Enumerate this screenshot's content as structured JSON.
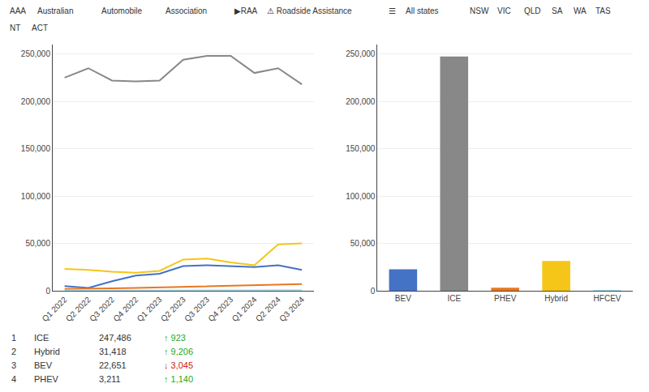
{
  "chart_data": [
    {
      "type": "line",
      "categories": [
        "Q1 2022",
        "Q2 2022",
        "Q3 2022",
        "Q4 2022",
        "Q1 2023",
        "Q2 2023",
        "Q3 2023",
        "Q4 2023",
        "Q1 2024",
        "Q2 2024",
        "Q3 2024"
      ],
      "series": [
        {
          "name": "ICE",
          "color": "#888888",
          "values": [
            225000,
            235000,
            222000,
            221000,
            222000,
            244000,
            248000,
            248000,
            230000,
            235000,
            218000
          ]
        },
        {
          "name": "Hybrid",
          "color": "#f5c518",
          "values": [
            23000,
            22000,
            20000,
            19000,
            21000,
            33000,
            34000,
            30000,
            27000,
            49000,
            50000
          ]
        },
        {
          "name": "BEV",
          "color": "#4472c4",
          "values": [
            5000,
            3000,
            10000,
            16000,
            18000,
            26000,
            27000,
            26000,
            25000,
            27000,
            22000
          ]
        },
        {
          "name": "PHEV",
          "color": "#e87722",
          "values": [
            2000,
            2000,
            2500,
            3000,
            3500,
            4000,
            4500,
            5000,
            5500,
            6500,
            7000
          ]
        },
        {
          "name": "HFCEV",
          "color": "#aaddee",
          "values": [
            200,
            200,
            300,
            300,
            300,
            400,
            400,
            500,
            500,
            600,
            700
          ]
        }
      ],
      "ylim": [
        0,
        260000
      ],
      "yticks": [
        0,
        {
          "value": 50000,
          "label": "50,000"
        },
        {
          "value": 100000,
          "label": "100,000"
        },
        {
          "value": 150000,
          "label": "150,000"
        },
        {
          "value": 200000,
          "label": "200,000"
        },
        {
          "value": 250000,
          "label": "250,000"
        }
      ],
      "grid": true,
      "annotations": [
        "AAA",
        "Australian",
        "Automobile",
        "Association",
        "▶RAA",
        "⚠ Roadside Assistance",
        "☰",
        "All states",
        "NSW",
        "VIC",
        "QLD",
        "SA",
        "WA",
        "TAS",
        "NT",
        "ACT"
      ]
    },
    {
      "type": "bar",
      "categories": [
        "BEV",
        "ICE",
        "PHEV",
        "Hybrid",
        "HFCEV"
      ],
      "values": [
        22651,
        247486,
        3211,
        31418,
        100
      ],
      "colors": [
        "#4472c4",
        "#888888",
        "#e87722",
        "#f5c518",
        "#aaddee"
      ],
      "ylim": [
        0,
        260000
      ],
      "yticks": [
        0,
        {
          "value": 50000,
          "label": "50,000"
        },
        {
          "value": 100000,
          "label": "100,000"
        },
        {
          "value": 150000,
          "label": "150,000"
        },
        {
          "value": 200000,
          "label": "200,000"
        },
        {
          "value": 250000,
          "label": "250,000"
        }
      ],
      "grid": true,
      "annotations": [
        "1",
        "ICE",
        "247,486",
        {
          "text": "↑ 923",
          "color": "#22aa22"
        },
        "2",
        "Hybrid",
        "31,418",
        {
          "text": "↑ 9,206",
          "color": "#22aa22"
        },
        "3",
        "BEV",
        "22,651",
        {
          "text": "↓ 3,045",
          "color": "#cc2222"
        },
        "4",
        "PHEV",
        "3,211",
        {
          "text": "↑ 1,140",
          "color": "#22aa22"
        }
      ]
    }
  ]
}
